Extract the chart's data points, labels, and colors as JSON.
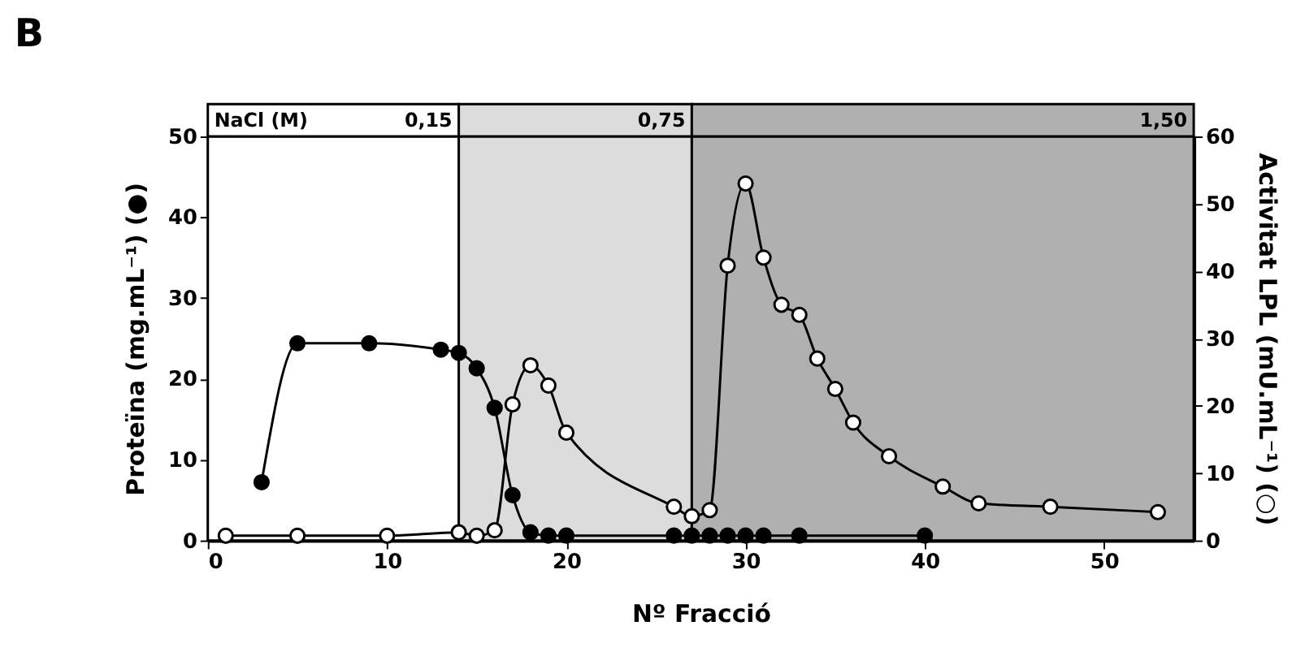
{
  "chart_data": {
    "type": "line",
    "title": "B",
    "xlabel": "Nº Fracció",
    "ylabel": "Proteïna (mg.mL⁻¹) (●)",
    "y2label": "Activitat LPL (mU.mL⁻¹) (○)",
    "annotations": [
      "NaCl (M)"
    ],
    "xlim": [
      0,
      55
    ],
    "xticks": [
      0,
      10,
      20,
      30,
      40,
      50
    ],
    "ylim": [
      0,
      50
    ],
    "yticks": [
      0,
      10,
      20,
      30,
      40,
      50
    ],
    "y2lim": [
      0,
      60
    ],
    "y2ticks": [
      0,
      10,
      20,
      30,
      40,
      50,
      60
    ],
    "marker": "circle",
    "line_style": "solid",
    "bands": [
      {
        "axis": "x",
        "from": 0,
        "to": 14,
        "label": "0,15",
        "color": "#ffffff"
      },
      {
        "axis": "x",
        "from": 14,
        "to": 27,
        "label": "0,75",
        "color": "#dcdcdc"
      },
      {
        "axis": "x",
        "from": 27,
        "to": 55,
        "label": "1,50",
        "color": "#b0b0b0"
      }
    ],
    "series": [
      {
        "color": "#000000",
        "x": [
          3,
          5,
          9,
          13,
          14,
          15,
          16,
          17,
          18,
          19,
          20,
          26,
          27,
          28,
          29,
          30,
          31,
          33,
          40
        ],
        "values": [
          7.2,
          24.4,
          24.4,
          23.6,
          23.2,
          21.3,
          16.4,
          5.6,
          1.0,
          0.6,
          0.6,
          0.6,
          0.6,
          0.6,
          0.6,
          0.6,
          0.6,
          0.6,
          0.6
        ]
      },
      {
        "color": "#ffffff",
        "axis": "y2",
        "x": [
          1,
          5,
          10,
          14,
          15,
          16,
          17,
          18,
          19,
          20,
          26,
          27,
          28,
          29,
          30,
          31,
          32,
          33,
          34,
          35,
          36,
          38,
          41,
          43,
          47,
          53
        ],
        "values": [
          0.7,
          0.7,
          0.7,
          1.2,
          0.7,
          1.5,
          20.2,
          26,
          23,
          16,
          5,
          3.6,
          4.5,
          40.8,
          53,
          42,
          35,
          33.5,
          27,
          22.5,
          17.5,
          12.5,
          8,
          5.5,
          5,
          4.2
        ]
      }
    ]
  }
}
